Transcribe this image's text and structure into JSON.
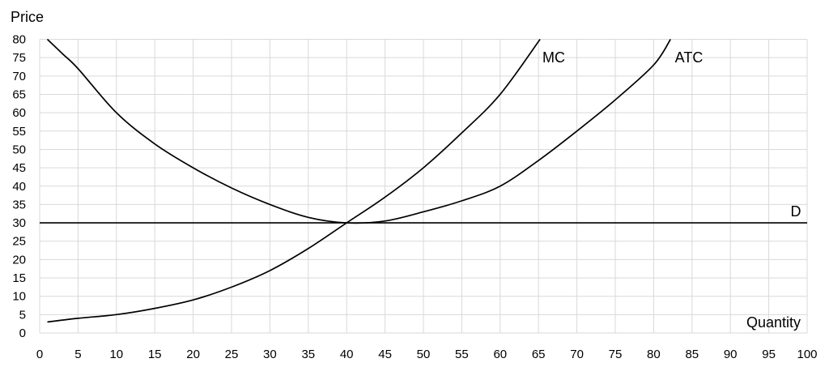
{
  "chart_data": {
    "type": "line",
    "title": "",
    "xlabel": "Quantity",
    "ylabel": "Price",
    "xlim": [
      0,
      100
    ],
    "ylim": [
      0,
      80
    ],
    "x_ticks": [
      0,
      5,
      10,
      15,
      20,
      25,
      30,
      35,
      40,
      45,
      50,
      55,
      60,
      65,
      70,
      75,
      80,
      85,
      90,
      95,
      100
    ],
    "y_ticks": [
      0,
      5,
      10,
      15,
      20,
      25,
      30,
      35,
      40,
      45,
      50,
      55,
      60,
      65,
      70,
      75,
      80
    ],
    "grid": true,
    "legend": "none",
    "series": [
      {
        "name": "MC",
        "x": [
          1,
          5,
          10,
          15,
          20,
          25,
          30,
          35,
          40,
          45,
          50,
          55,
          60,
          65.2
        ],
        "y": [
          3,
          4,
          5,
          6.7,
          9,
          12.5,
          17,
          23,
          30,
          37,
          45,
          54.5,
          65,
          80
        ]
      },
      {
        "name": "ATC",
        "x": [
          1,
          3,
          5,
          10,
          15,
          20,
          25,
          30,
          35,
          40,
          45,
          50,
          55,
          60,
          65,
          70,
          75,
          80,
          82.2
        ],
        "y": [
          80,
          76,
          72,
          60,
          51.5,
          45,
          39.5,
          35,
          31.5,
          30,
          30.5,
          33,
          36,
          40,
          47,
          55,
          63.5,
          73,
          80
        ]
      },
      {
        "name": "D",
        "x": [
          0,
          100
        ],
        "y": [
          30,
          30
        ]
      }
    ]
  }
}
